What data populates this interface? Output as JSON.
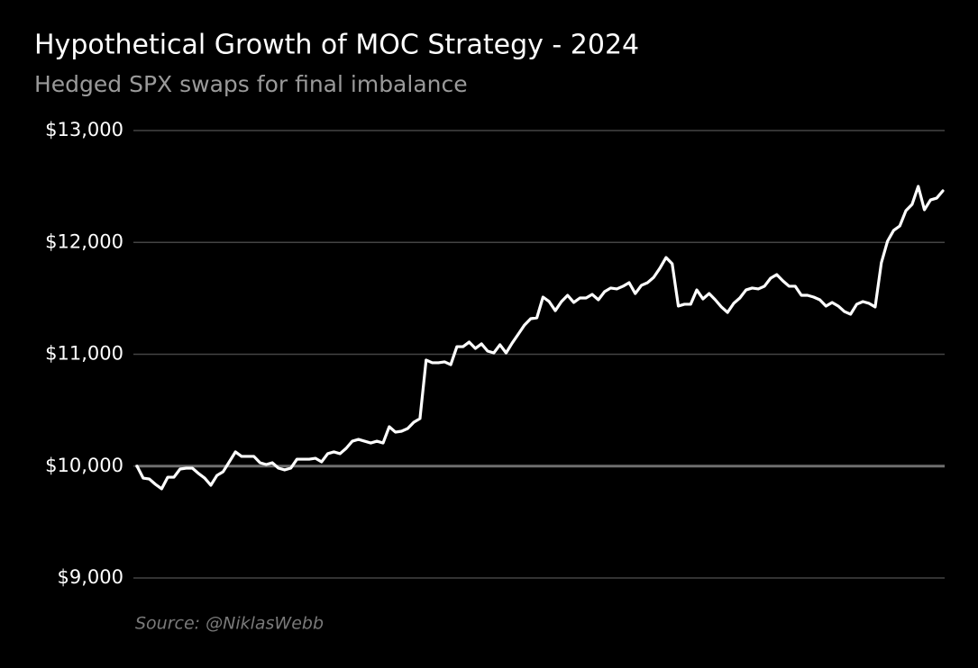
{
  "chart_data": {
    "type": "line",
    "title": "Hypothetical Growth of MOC Strategy - 2024",
    "subtitle": "Hedged SPX swaps for final imbalance",
    "source": "Source: @NiklasWebb",
    "categories": [
      null,
      null,
      null,
      null,
      null,
      null,
      null,
      null,
      null,
      null,
      null,
      null,
      null,
      null,
      null,
      null,
      null,
      null,
      null,
      null,
      null,
      null,
      null,
      null,
      null,
      null,
      null,
      null,
      null,
      null,
      null,
      null,
      null,
      null,
      null,
      null,
      null,
      null,
      null,
      null,
      null,
      null,
      null,
      null,
      null,
      null,
      null,
      null,
      null,
      null,
      null,
      null,
      null,
      null,
      null,
      null,
      null,
      null,
      null,
      null,
      null,
      null,
      null,
      null,
      null,
      null,
      null,
      null,
      null,
      null,
      null,
      null,
      null,
      null,
      null,
      null,
      null,
      null,
      null,
      null,
      null,
      null,
      null,
      null,
      null,
      null,
      null,
      null,
      null,
      null,
      null,
      null,
      null,
      null,
      null,
      null,
      null,
      null,
      null,
      null,
      null,
      null,
      null,
      null,
      null,
      null,
      null,
      null,
      null,
      null,
      null,
      null,
      null,
      null,
      null,
      null,
      null,
      null,
      null,
      null,
      null,
      null,
      null,
      null,
      null,
      null,
      null,
      null,
      null,
      null,
      null,
      null
    ],
    "series": [
      {
        "name": "MOC Strategy",
        "color": "#ffffff",
        "values": [
          10000,
          9893,
          9885,
          9837,
          9797,
          9901,
          9901,
          9974,
          9982,
          9982,
          9934,
          9893,
          9829,
          9917,
          9950,
          10038,
          10127,
          10087,
          10087,
          10087,
          10030,
          10014,
          10030,
          9982,
          9966,
          9982,
          10062,
          10062,
          10062,
          10070,
          10038,
          10111,
          10127,
          10111,
          10159,
          10223,
          10239,
          10223,
          10207,
          10223,
          10207,
          10352,
          10304,
          10312,
          10336,
          10392,
          10425,
          10948,
          10924,
          10924,
          10932,
          10907,
          11068,
          11068,
          11109,
          11052,
          11093,
          11028,
          11012,
          11085,
          11012,
          11101,
          11181,
          11262,
          11318,
          11326,
          11511,
          11471,
          11390,
          11471,
          11527,
          11463,
          11503,
          11503,
          11535,
          11487,
          11559,
          11592,
          11584,
          11608,
          11640,
          11543,
          11616,
          11640,
          11688,
          11769,
          11865,
          11809,
          11431,
          11447,
          11447,
          11575,
          11495,
          11543,
          11487,
          11423,
          11374,
          11455,
          11503,
          11575,
          11592,
          11584,
          11608,
          11680,
          11712,
          11656,
          11608,
          11608,
          11527,
          11527,
          11511,
          11487,
          11431,
          11463,
          11431,
          11382,
          11358,
          11447,
          11471,
          11455,
          11423,
          11817,
          12010,
          12107,
          12147,
          12284,
          12340,
          12501,
          12292,
          12380,
          12396,
          12461
        ]
      }
    ],
    "ylim": [
      9000,
      13000
    ],
    "yticks": [
      {
        "value": 9000,
        "label": "$9,000"
      },
      {
        "value": 10000,
        "label": "$10,000"
      },
      {
        "value": 11000,
        "label": "$11,000"
      },
      {
        "value": 12000,
        "label": "$12,000"
      },
      {
        "value": 13000,
        "label": "$13,000"
      }
    ],
    "grid": true,
    "grid_color": "#444444",
    "baseline": 10000,
    "baseline_color": "#6e6e6e"
  }
}
